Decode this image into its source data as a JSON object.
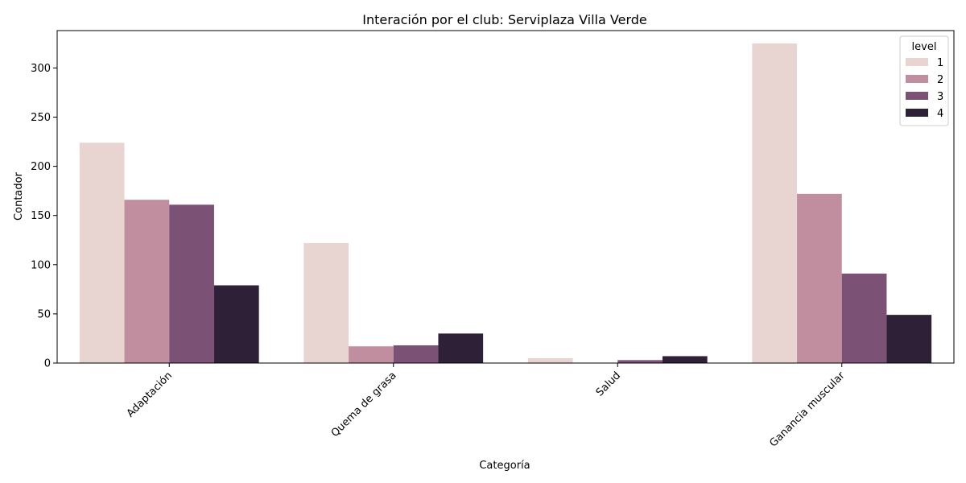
{
  "chart_data": {
    "type": "bar",
    "title": "Interación por el club: Serviplaza Villa Verde",
    "xlabel": "Categoría",
    "ylabel": "Contador",
    "categories": [
      "Adaptación",
      "Quema de grasa",
      "Salud",
      "Ganancia muscular"
    ],
    "series": [
      {
        "name": "1",
        "color": "#e8d5d2",
        "values": [
          224,
          122,
          5,
          325
        ]
      },
      {
        "name": "2",
        "color": "#c08e9e",
        "values": [
          166,
          17,
          0,
          172
        ]
      },
      {
        "name": "3",
        "color": "#7b5276",
        "values": [
          161,
          18,
          3,
          91
        ]
      },
      {
        "name": "4",
        "color": "#2e2137",
        "values": [
          79,
          30,
          7,
          49
        ]
      }
    ],
    "ylim": [
      0,
      338
    ],
    "yticks": [
      0,
      50,
      100,
      150,
      200,
      250,
      300
    ],
    "legend": {
      "title": "level",
      "position": "top-right"
    },
    "grid": false,
    "x_tick_rotation": 45
  }
}
